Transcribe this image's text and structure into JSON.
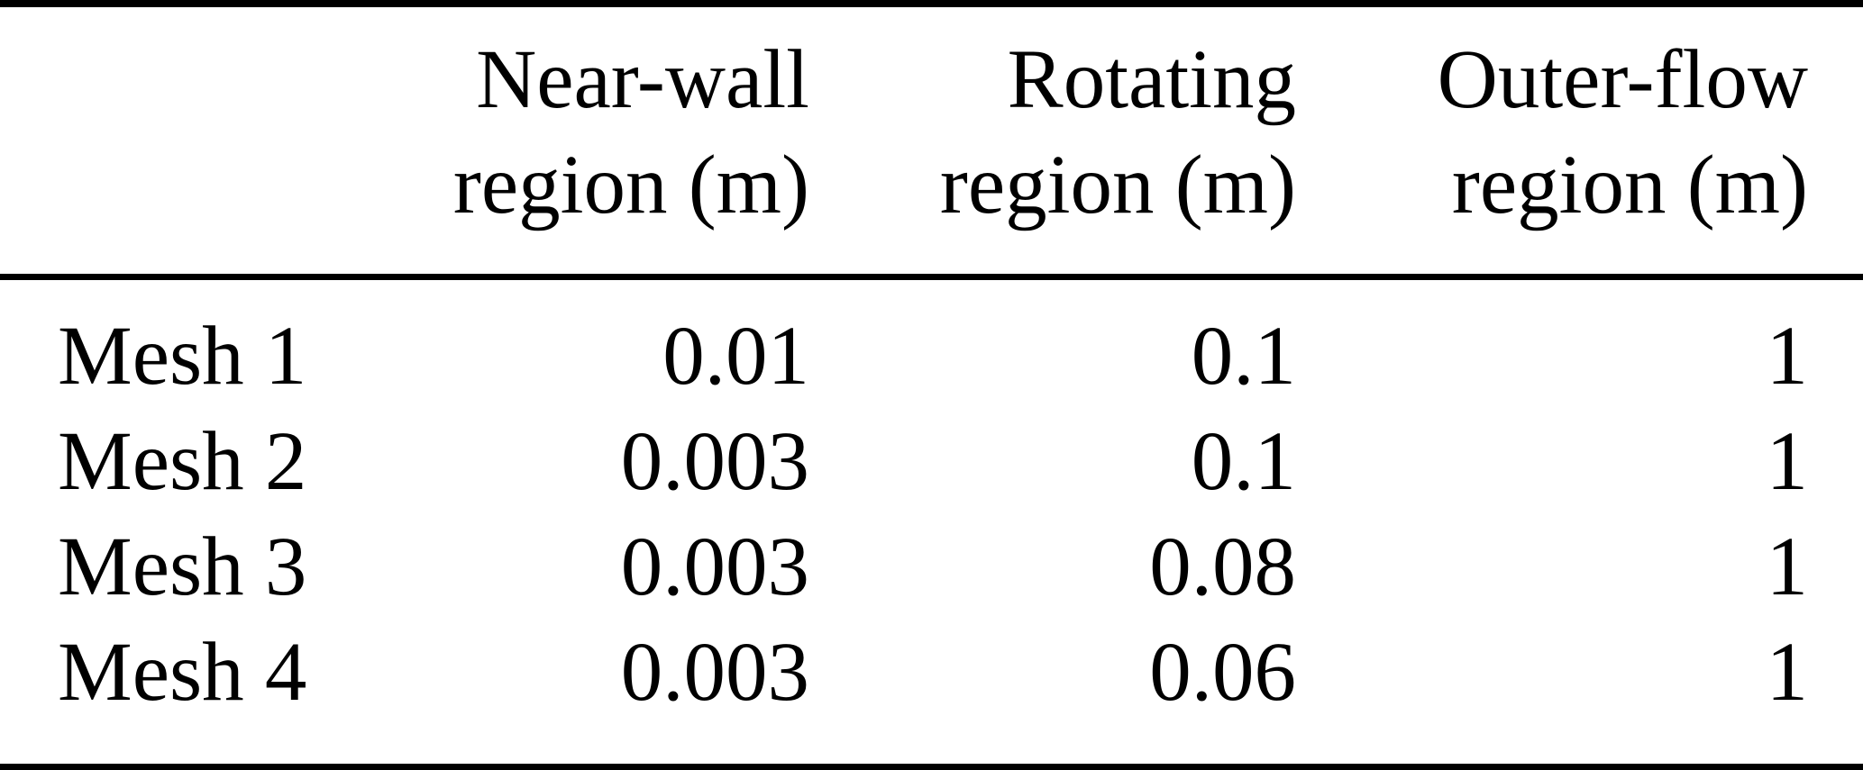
{
  "table": {
    "headers": [
      {
        "line1": "",
        "line2": ""
      },
      {
        "line1": "Near-wall",
        "line2": "region (m)"
      },
      {
        "line1": "Rotating",
        "line2": "region (m)"
      },
      {
        "line1": "Outer-flow",
        "line2": "region (m)"
      }
    ],
    "rows": [
      {
        "label": "Mesh 1",
        "values": [
          "0.01",
          "0.1",
          "1"
        ]
      },
      {
        "label": "Mesh 2",
        "values": [
          "0.003",
          "0.1",
          "1"
        ]
      },
      {
        "label": "Mesh 3",
        "values": [
          "0.003",
          "0.08",
          "1"
        ]
      },
      {
        "label": "Mesh 4",
        "values": [
          "0.003",
          "0.06",
          "1"
        ]
      }
    ]
  },
  "chart_data": {
    "type": "table",
    "columns": [
      "",
      "Near-wall region (m)",
      "Rotating region (m)",
      "Outer-flow region (m)"
    ],
    "rows": [
      [
        "Mesh 1",
        0.01,
        0.1,
        1
      ],
      [
        "Mesh 2",
        0.003,
        0.1,
        1
      ],
      [
        "Mesh 3",
        0.003,
        0.08,
        1
      ],
      [
        "Mesh 4",
        0.003,
        0.06,
        1
      ]
    ]
  }
}
